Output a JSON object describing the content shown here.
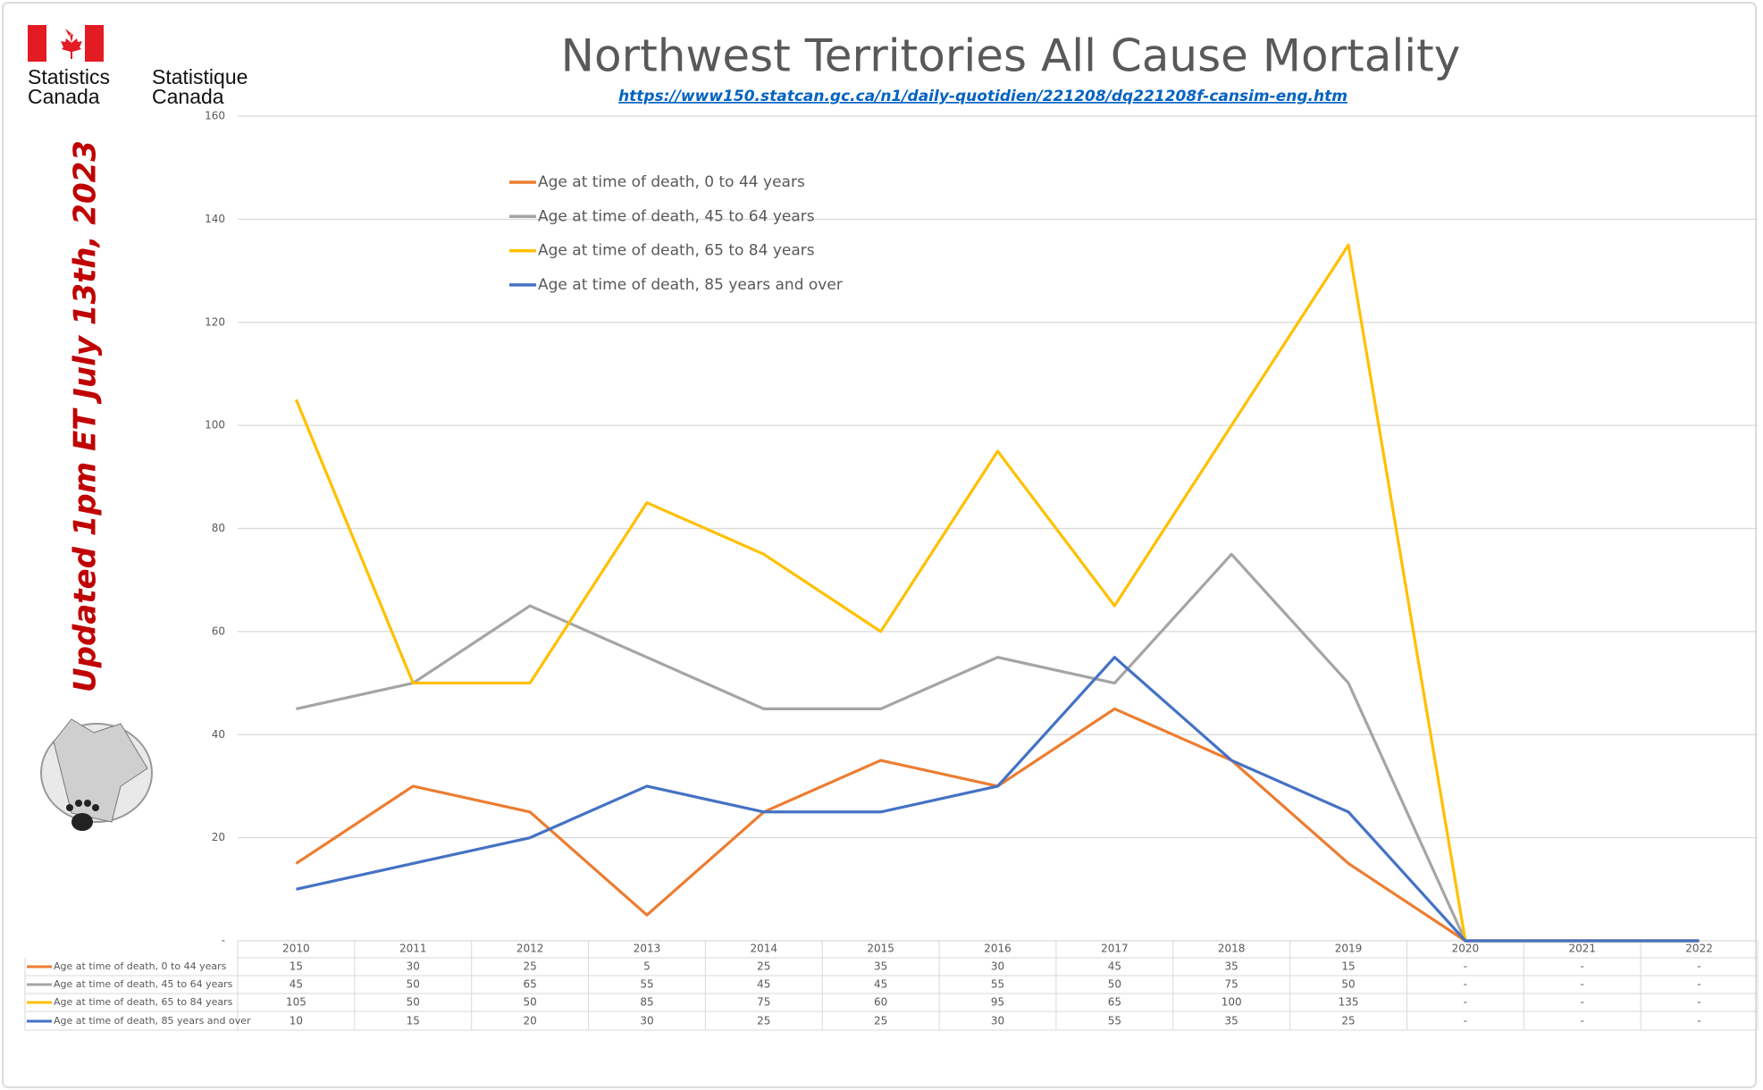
{
  "header": {
    "org_en": "Statistics",
    "org_en2": "Canada",
    "org_fr": "Statistique",
    "org_fr2": "Canada",
    "updated": "Updated 1pm ET July 13th, 2023"
  },
  "chart_data": {
    "type": "line",
    "title": "Northwest Territories All Cause Mortality",
    "subtitle": "https://www150.statcan.gc.ca/n1/daily-quotidien/221208/dq221208f-cansim-eng.htm",
    "categories": [
      "2010",
      "2011",
      "2012",
      "2013",
      "2014",
      "2015",
      "2016",
      "2017",
      "2018",
      "2019",
      "2020",
      "2021",
      "2022"
    ],
    "series": [
      {
        "name": "Age at time of death, 0 to 44 years",
        "color": "#ed7d31",
        "values": [
          15,
          30,
          25,
          5,
          25,
          35,
          30,
          45,
          35,
          15,
          0,
          0,
          0
        ],
        "value_labels": [
          "15",
          "30",
          "25",
          "5",
          "25",
          "35",
          "30",
          "45",
          "35",
          "15",
          "-",
          "-",
          "-"
        ]
      },
      {
        "name": "Age at time of death, 45 to 64 years",
        "color": "#a5a5a5",
        "values": [
          45,
          50,
          65,
          55,
          45,
          45,
          55,
          50,
          75,
          50,
          0,
          0,
          0
        ],
        "value_labels": [
          "45",
          "50",
          "65",
          "55",
          "45",
          "45",
          "55",
          "50",
          "75",
          "50",
          "-",
          "-",
          "-"
        ]
      },
      {
        "name": "Age at time of death, 65 to 84 years",
        "color": "#ffc000",
        "values": [
          105,
          50,
          50,
          85,
          75,
          60,
          95,
          65,
          100,
          135,
          0,
          0,
          0
        ],
        "value_labels": [
          "105",
          "50",
          "50",
          "85",
          "75",
          "60",
          "95",
          "65",
          "100",
          "135",
          "-",
          "-",
          "-"
        ]
      },
      {
        "name": "Age at time of death, 85 years and over",
        "color": "#4472c4",
        "values": [
          10,
          15,
          20,
          30,
          25,
          25,
          30,
          55,
          35,
          25,
          0,
          0,
          0
        ],
        "value_labels": [
          "10",
          "15",
          "20",
          "30",
          "25",
          "25",
          "30",
          "55",
          "35",
          "25",
          "-",
          "-",
          "-"
        ]
      }
    ],
    "ylim": [
      0,
      160
    ],
    "yticks": [
      {
        "value": 0,
        "label": "-"
      },
      20,
      40,
      60,
      80,
      100,
      120,
      140,
      160
    ],
    "grid": true,
    "legend": "top-left"
  }
}
